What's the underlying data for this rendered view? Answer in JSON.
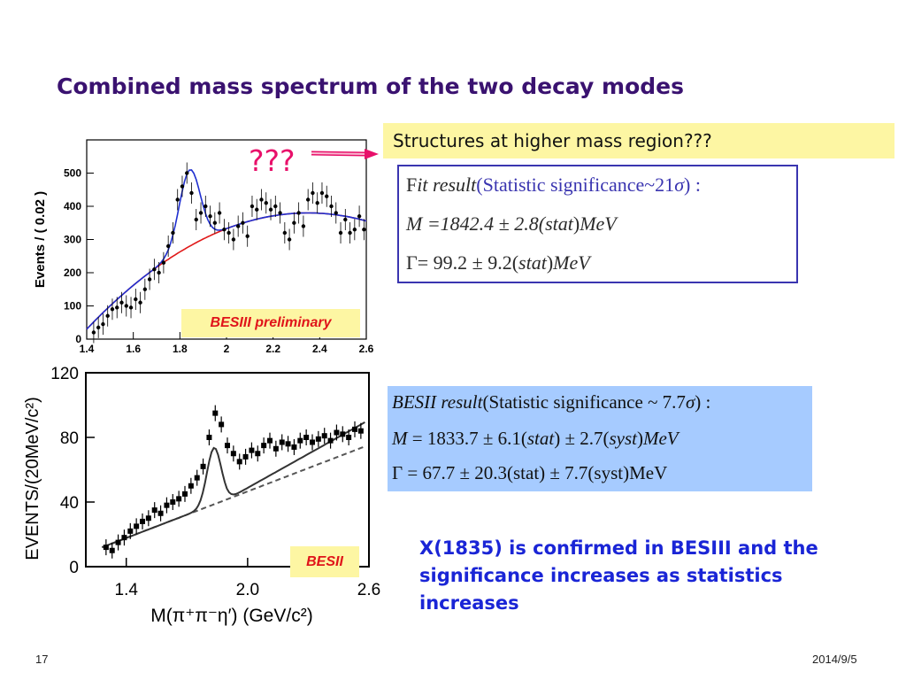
{
  "slide": {
    "title": "Combined mass spectrum of the two decay modes",
    "page_number": "17",
    "date": "2014/9/5"
  },
  "callout": {
    "text": "Structures at higher mass region???",
    "marker": "???",
    "arrow_color": "#e8106a"
  },
  "fit_result": {
    "line1_f": "F",
    "line1_it": "it result",
    "line1_sig": "(Statistic significance~21",
    "line1_sigma": "σ",
    "line1_end": ") :",
    "line2": "M  =1842.4 ± 2.8(",
    "line2_stat": "stat",
    "line2_close": ")",
    "line2_unit": "MeV",
    "line3": "Γ= 99.2 ± 9.2(",
    "line3_stat": "stat",
    "line3_close": ")",
    "line3_unit": "MeV"
  },
  "besii_result": {
    "line1_it": "BESII  result",
    "line1_sig": "(Statistic significance ~ 7.7",
    "line1_sigma": "σ",
    "line1_end": ") :",
    "line2_m": "M",
    "line2_val": "  = 1833.7 ± 6.1(",
    "line2_stat": "stat",
    "line2_mid": ") ± 2.7(",
    "line2_syst": "syst",
    "line2_close": ")",
    "line2_unit": "MeV",
    "line3": "Γ = 67.7 ± 20.3(stat) ± 7.7(syst)MeV"
  },
  "conclusion": "X(1835) is confirmed in BESIII and the significance increases as statistics increases",
  "chart_data": [
    {
      "type": "scatter",
      "label": "BESIII preliminary",
      "ylabel": "Events / ( 0.02 )",
      "xlim": [
        1.4,
        2.6
      ],
      "ylim": [
        0,
        600
      ],
      "x_ticks": [
        "1.4",
        "1.6",
        "1.8",
        "2",
        "2.2",
        "2.4",
        "2.6"
      ],
      "y_ticks": [
        "0",
        "100",
        "200",
        "300",
        "400",
        "500"
      ],
      "points": {
        "x": [
          1.43,
          1.45,
          1.47,
          1.49,
          1.51,
          1.53,
          1.55,
          1.57,
          1.59,
          1.61,
          1.63,
          1.65,
          1.67,
          1.69,
          1.71,
          1.73,
          1.75,
          1.77,
          1.79,
          1.81,
          1.83,
          1.85,
          1.87,
          1.89,
          1.91,
          1.93,
          1.95,
          1.97,
          1.99,
          2.01,
          2.03,
          2.05,
          2.07,
          2.09,
          2.11,
          2.13,
          2.15,
          2.17,
          2.19,
          2.21,
          2.23,
          2.25,
          2.27,
          2.29,
          2.31,
          2.33,
          2.35,
          2.37,
          2.39,
          2.41,
          2.43,
          2.45,
          2.47,
          2.49,
          2.51,
          2.53,
          2.55,
          2.57,
          2.59
        ],
        "y": [
          20,
          35,
          45,
          70,
          90,
          95,
          110,
          100,
          95,
          120,
          110,
          150,
          180,
          210,
          200,
          230,
          280,
          320,
          420,
          460,
          500,
          440,
          360,
          380,
          400,
          370,
          350,
          380,
          330,
          320,
          300,
          340,
          350,
          310,
          400,
          390,
          420,
          410,
          390,
          400,
          380,
          320,
          300,
          350,
          380,
          340,
          420,
          440,
          410,
          440,
          430,
          400,
          380,
          320,
          360,
          320,
          330,
          370,
          330
        ]
      },
      "series": [
        {
          "name": "fit",
          "color": "#1f2fd0"
        },
        {
          "name": "background",
          "color": "#e01818"
        }
      ]
    },
    {
      "type": "scatter",
      "label": "BESII",
      "ylabel": "EVENTS/(20MeV/c²)",
      "xlabel": "M(π⁺π⁻η′)  (GeV/c²)",
      "xlim": [
        1.2,
        2.6
      ],
      "ylim": [
        0,
        120
      ],
      "x_ticks": [
        "1.4",
        "2.0",
        "2.6"
      ],
      "y_ticks": [
        "0",
        "40",
        "80",
        "120"
      ],
      "points": {
        "x": [
          1.3,
          1.33,
          1.36,
          1.39,
          1.42,
          1.45,
          1.48,
          1.51,
          1.54,
          1.57,
          1.6,
          1.63,
          1.66,
          1.69,
          1.72,
          1.75,
          1.78,
          1.81,
          1.84,
          1.87,
          1.9,
          1.93,
          1.96,
          1.99,
          2.02,
          2.05,
          2.08,
          2.11,
          2.14,
          2.17,
          2.2,
          2.23,
          2.26,
          2.29,
          2.32,
          2.35,
          2.38,
          2.41,
          2.44,
          2.47,
          2.5,
          2.53,
          2.56
        ],
        "y": [
          12,
          10,
          15,
          18,
          22,
          25,
          28,
          30,
          35,
          33,
          38,
          40,
          42,
          45,
          50,
          55,
          62,
          80,
          95,
          88,
          75,
          70,
          65,
          68,
          72,
          70,
          75,
          78,
          73,
          77,
          76,
          74,
          78,
          80,
          77,
          79,
          81,
          78,
          83,
          82,
          80,
          85,
          84
        ]
      },
      "series": [
        {
          "name": "fit",
          "color": "#333333"
        },
        {
          "name": "background",
          "color": "#555555"
        }
      ]
    }
  ]
}
